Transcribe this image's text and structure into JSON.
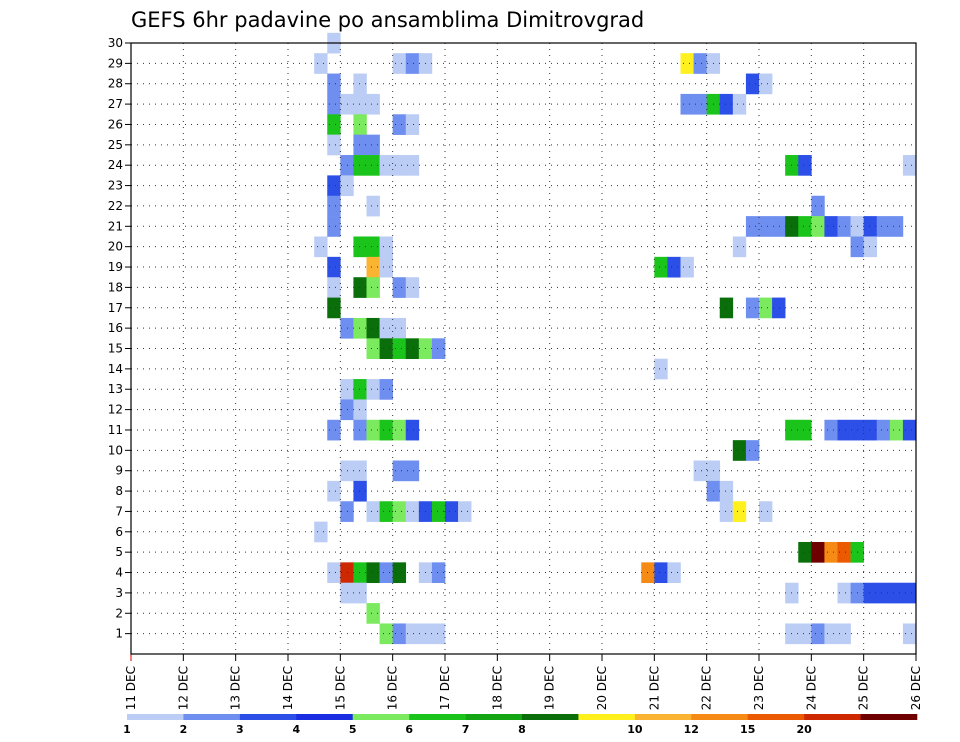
{
  "chart_data": {
    "type": "heatmap",
    "title": "GEFS 6hr padavine po ansamblima Dimitrovgrad",
    "xlabel": "",
    "ylabel": "",
    "x_ticks": [
      "11 DEC",
      "12 DEC",
      "13 DEC",
      "14 DEC",
      "15 DEC",
      "16 DEC",
      "17 DEC",
      "18 DEC",
      "19 DEC",
      "20 DEC",
      "21 DEC",
      "22 DEC",
      "23 DEC",
      "24 DEC",
      "25 DEC",
      "26 DEC"
    ],
    "y_ticks": [
      1,
      2,
      3,
      4,
      5,
      6,
      7,
      8,
      9,
      10,
      11,
      12,
      13,
      14,
      15,
      16,
      17,
      18,
      19,
      20,
      21,
      22,
      23,
      24,
      25,
      26,
      27,
      28,
      29,
      30
    ],
    "x_range_days": [
      11,
      26
    ],
    "y_range": [
      0,
      30
    ],
    "step_hours": 6,
    "grid": true,
    "colorscale": {
      "bounds": [
        "1",
        "2",
        "3",
        "4",
        "5",
        "6",
        "7",
        "8",
        "10",
        "12",
        "15",
        "20"
      ],
      "colors": [
        "#bccdf5",
        "#6f8ff0",
        "#2c4fe8",
        "#1a2de0",
        "#7bea5e",
        "#1bc41b",
        "#13a513",
        "#0a6e0a",
        "#fff01e",
        "#fbb432",
        "#f58a14",
        "#eb5a00",
        "#cd2800",
        "#6e0000"
      ]
    },
    "cells": [
      [
        14.75,
        30,
        0
      ],
      [
        14.5,
        29,
        0
      ],
      [
        16.0,
        29,
        0
      ],
      [
        16.25,
        29,
        1
      ],
      [
        16.5,
        29,
        0
      ],
      [
        14.75,
        28,
        1
      ],
      [
        15.25,
        28,
        0
      ],
      [
        14.75,
        27,
        1
      ],
      [
        15.0,
        27,
        0
      ],
      [
        15.25,
        27,
        0
      ],
      [
        15.5,
        27,
        0
      ],
      [
        14.75,
        26,
        5
      ],
      [
        15.25,
        26,
        4
      ],
      [
        16.0,
        26,
        1
      ],
      [
        16.25,
        26,
        0
      ],
      [
        14.75,
        25,
        0
      ],
      [
        15.25,
        25,
        1
      ],
      [
        15.5,
        25,
        1
      ],
      [
        15.0,
        24,
        1
      ],
      [
        15.25,
        24,
        5
      ],
      [
        15.5,
        24,
        5
      ],
      [
        15.75,
        24,
        0
      ],
      [
        16.0,
        24,
        0
      ],
      [
        16.25,
        24,
        0
      ],
      [
        14.75,
        23,
        2
      ],
      [
        15.0,
        23,
        0
      ],
      [
        14.75,
        22,
        1
      ],
      [
        15.5,
        22,
        0
      ],
      [
        14.75,
        21,
        1
      ],
      [
        14.5,
        20,
        0
      ],
      [
        15.25,
        20,
        5
      ],
      [
        15.5,
        20,
        5
      ],
      [
        15.75,
        20,
        0
      ],
      [
        14.75,
        19,
        2
      ],
      [
        15.5,
        19,
        9
      ],
      [
        15.75,
        19,
        0
      ],
      [
        14.75,
        18,
        0
      ],
      [
        15.25,
        18,
        7
      ],
      [
        15.5,
        18,
        4
      ],
      [
        16.0,
        18,
        1
      ],
      [
        16.25,
        18,
        0
      ],
      [
        14.75,
        17,
        7
      ],
      [
        15.0,
        16,
        1
      ],
      [
        15.25,
        16,
        4
      ],
      [
        15.5,
        16,
        7
      ],
      [
        15.75,
        16,
        0
      ],
      [
        16.0,
        16,
        0
      ],
      [
        15.5,
        15,
        4
      ],
      [
        15.75,
        15,
        7
      ],
      [
        16.0,
        15,
        5
      ],
      [
        16.25,
        15,
        7
      ],
      [
        16.5,
        15,
        4
      ],
      [
        16.75,
        15,
        1
      ],
      [
        15.0,
        13,
        0
      ],
      [
        15.25,
        13,
        5
      ],
      [
        15.5,
        13,
        0
      ],
      [
        15.75,
        13,
        1
      ],
      [
        15.0,
        12,
        1
      ],
      [
        15.25,
        12,
        0
      ],
      [
        14.75,
        11,
        1
      ],
      [
        15.25,
        11,
        1
      ],
      [
        15.5,
        11,
        4
      ],
      [
        15.75,
        11,
        5
      ],
      [
        16.0,
        11,
        4
      ],
      [
        16.25,
        11,
        2
      ],
      [
        15.0,
        9,
        0
      ],
      [
        15.25,
        9,
        0
      ],
      [
        16.0,
        9,
        1
      ],
      [
        16.25,
        9,
        1
      ],
      [
        14.75,
        8,
        0
      ],
      [
        15.25,
        8,
        2
      ],
      [
        15.0,
        7,
        1
      ],
      [
        15.5,
        7,
        0
      ],
      [
        15.75,
        7,
        5
      ],
      [
        16.0,
        7,
        4
      ],
      [
        16.25,
        7,
        0
      ],
      [
        16.5,
        7,
        2
      ],
      [
        16.75,
        7,
        5
      ],
      [
        17.0,
        7,
        2
      ],
      [
        17.25,
        7,
        0
      ],
      [
        14.5,
        6,
        0
      ],
      [
        14.75,
        4,
        0
      ],
      [
        15.0,
        4,
        12
      ],
      [
        15.25,
        4,
        5
      ],
      [
        15.5,
        4,
        7
      ],
      [
        15.75,
        4,
        1
      ],
      [
        16.0,
        4,
        7
      ],
      [
        16.5,
        4,
        0
      ],
      [
        16.75,
        4,
        1
      ],
      [
        15.0,
        3,
        0
      ],
      [
        15.25,
        3,
        0
      ],
      [
        15.5,
        2,
        4
      ],
      [
        15.75,
        1,
        4
      ],
      [
        16.0,
        1,
        1
      ],
      [
        16.25,
        1,
        0
      ],
      [
        16.5,
        1,
        0
      ],
      [
        16.75,
        1,
        0
      ],
      [
        21.5,
        29,
        8
      ],
      [
        21.75,
        29,
        1
      ],
      [
        22.0,
        29,
        0
      ],
      [
        22.75,
        28,
        2
      ],
      [
        23.0,
        28,
        0
      ],
      [
        21.5,
        27,
        1
      ],
      [
        21.75,
        27,
        1
      ],
      [
        22.0,
        27,
        5
      ],
      [
        22.25,
        27,
        2
      ],
      [
        22.5,
        27,
        0
      ],
      [
        23.5,
        24,
        5
      ],
      [
        23.75,
        24,
        2
      ],
      [
        24.0,
        22,
        1
      ],
      [
        22.75,
        21,
        1
      ],
      [
        23.0,
        21,
        1
      ],
      [
        23.25,
        21,
        1
      ],
      [
        23.5,
        21,
        7
      ],
      [
        23.75,
        21,
        5
      ],
      [
        24.0,
        21,
        4
      ],
      [
        24.25,
        21,
        2
      ],
      [
        24.5,
        21,
        1
      ],
      [
        24.75,
        21,
        0
      ],
      [
        25.0,
        21,
        2
      ],
      [
        25.25,
        21,
        1
      ],
      [
        25.5,
        21,
        1
      ],
      [
        22.5,
        20,
        0
      ],
      [
        24.75,
        20,
        1
      ],
      [
        25.0,
        20,
        0
      ],
      [
        21.0,
        19,
        5
      ],
      [
        21.25,
        19,
        2
      ],
      [
        21.5,
        19,
        0
      ],
      [
        22.25,
        17,
        7
      ],
      [
        22.75,
        17,
        1
      ],
      [
        23.0,
        17,
        4
      ],
      [
        23.25,
        17,
        2
      ],
      [
        21.0,
        14,
        0
      ],
      [
        23.5,
        11,
        5
      ],
      [
        23.75,
        11,
        5
      ],
      [
        24.25,
        11,
        1
      ],
      [
        24.5,
        11,
        2
      ],
      [
        24.75,
        11,
        2
      ],
      [
        25.0,
        11,
        2
      ],
      [
        25.25,
        11,
        1
      ],
      [
        25.5,
        11,
        4
      ],
      [
        25.75,
        11,
        2
      ],
      [
        22.5,
        10,
        7
      ],
      [
        22.75,
        10,
        1
      ],
      [
        21.75,
        9,
        0
      ],
      [
        22.0,
        9,
        0
      ],
      [
        22.0,
        8,
        1
      ],
      [
        22.25,
        8,
        0
      ],
      [
        22.25,
        7,
        0
      ],
      [
        22.5,
        7,
        8
      ],
      [
        23.0,
        7,
        0
      ],
      [
        23.75,
        5,
        7
      ],
      [
        24.0,
        5,
        13
      ],
      [
        24.25,
        5,
        10
      ],
      [
        24.5,
        5,
        11
      ],
      [
        24.75,
        5,
        5
      ],
      [
        20.75,
        4,
        10
      ],
      [
        21.0,
        4,
        2
      ],
      [
        21.25,
        4,
        0
      ],
      [
        23.5,
        3,
        0
      ],
      [
        24.5,
        3,
        0
      ],
      [
        24.75,
        3,
        1
      ],
      [
        25.0,
        3,
        2
      ],
      [
        25.25,
        3,
        2
      ],
      [
        25.5,
        3,
        2
      ],
      [
        25.75,
        3,
        2
      ],
      [
        23.5,
        1,
        0
      ],
      [
        23.75,
        1,
        0
      ],
      [
        24.0,
        1,
        1
      ],
      [
        24.25,
        1,
        0
      ],
      [
        24.5,
        1,
        0
      ],
      [
        25.75,
        24,
        0
      ],
      [
        25.75,
        1,
        0
      ]
    ]
  }
}
